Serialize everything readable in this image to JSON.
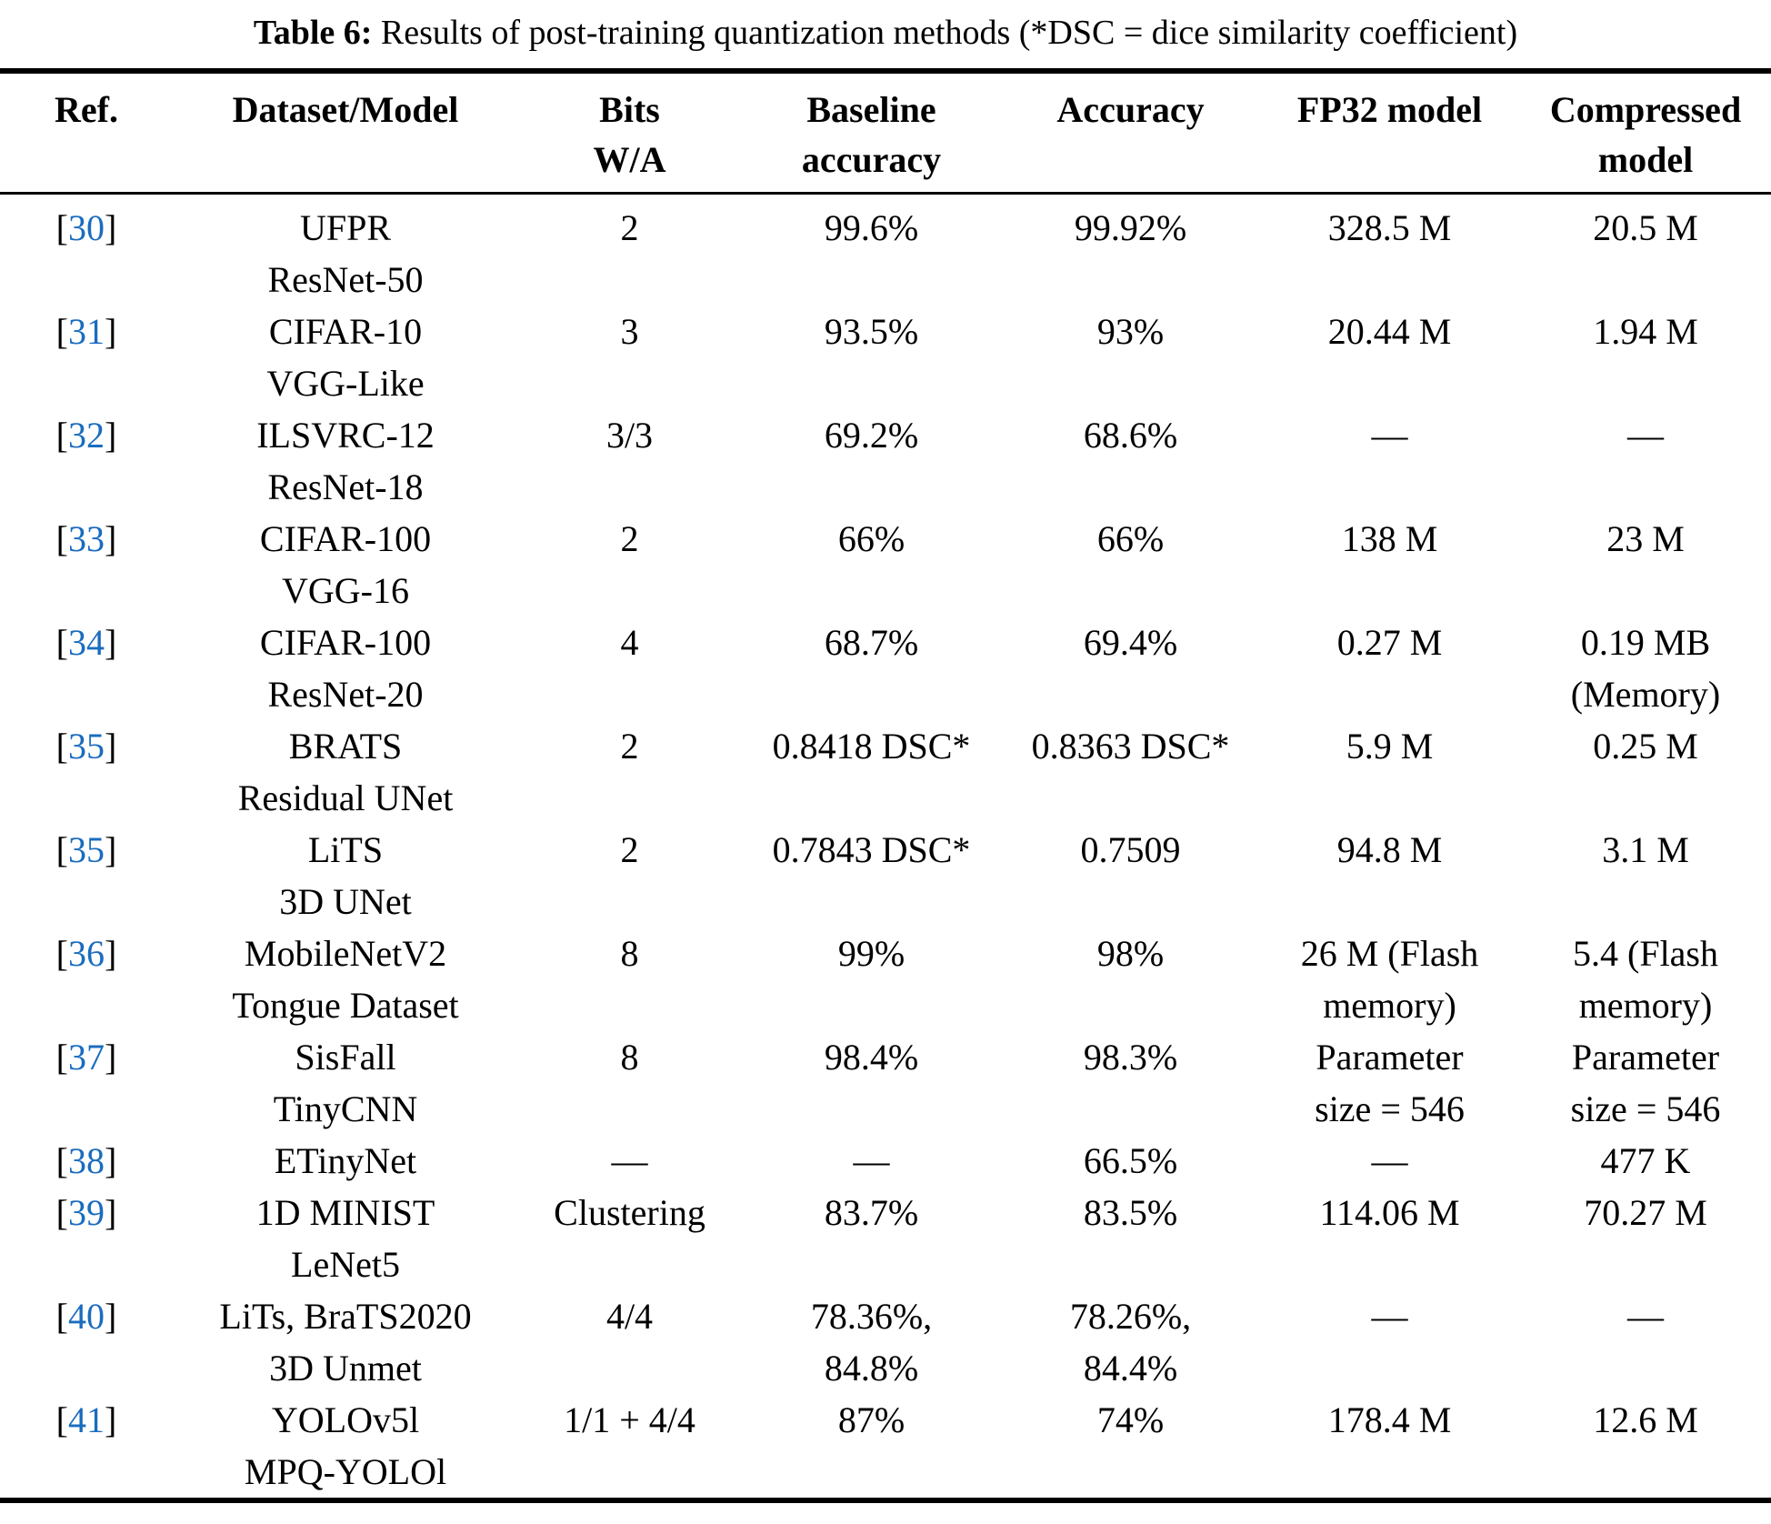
{
  "title": {
    "prefix": "Table 6:",
    "rest": " Results of post-training quantization methods (*DSC = dice similarity coefficient)"
  },
  "accent_color": "#1a6cbe",
  "table": {
    "headers": [
      {
        "lines": [
          "Ref."
        ]
      },
      {
        "lines": [
          "Dataset/Model"
        ]
      },
      {
        "lines": [
          "Bits",
          "W/A"
        ]
      },
      {
        "lines": [
          "Baseline",
          "accuracy"
        ]
      },
      {
        "lines": [
          "Accuracy"
        ]
      },
      {
        "lines": [
          "FP32 model"
        ]
      },
      {
        "lines": [
          "Compressed",
          "model"
        ]
      }
    ],
    "rows": [
      {
        "ref": {
          "open": "[",
          "num": "30",
          "close": "]"
        },
        "cells": [
          [
            "UFPR",
            "ResNet-50"
          ],
          [
            "2"
          ],
          [
            "99.6%"
          ],
          [
            "99.92%"
          ],
          [
            "328.5 M"
          ],
          [
            "20.5 M"
          ]
        ]
      },
      {
        "ref": {
          "open": "[",
          "num": "31",
          "close": "]"
        },
        "cells": [
          [
            "CIFAR-10",
            "VGG-Like"
          ],
          [
            "3"
          ],
          [
            "93.5%"
          ],
          [
            "93%"
          ],
          [
            "20.44 M"
          ],
          [
            "1.94 M"
          ]
        ]
      },
      {
        "ref": {
          "open": "[",
          "num": "32",
          "close": "]"
        },
        "cells": [
          [
            "ILSVRC-12",
            "ResNet-18"
          ],
          [
            "3/3"
          ],
          [
            "69.2%"
          ],
          [
            "68.6%"
          ],
          [
            "—"
          ],
          [
            "—"
          ]
        ]
      },
      {
        "ref": {
          "open": "[",
          "num": "33",
          "close": "]"
        },
        "cells": [
          [
            "CIFAR-100",
            "VGG-16"
          ],
          [
            "2"
          ],
          [
            "66%"
          ],
          [
            "66%"
          ],
          [
            "138 M"
          ],
          [
            "23 M"
          ]
        ]
      },
      {
        "ref": {
          "open": "[",
          "num": "34",
          "close": "]"
        },
        "cells": [
          [
            "CIFAR-100",
            "ResNet-20"
          ],
          [
            "4"
          ],
          [
            "68.7%"
          ],
          [
            "69.4%"
          ],
          [
            "0.27 M"
          ],
          [
            "0.19 MB",
            "(Memory)"
          ]
        ]
      },
      {
        "ref": {
          "open": "[",
          "num": "35",
          "close": "]"
        },
        "cells": [
          [
            "BRATS",
            "Residual UNet"
          ],
          [
            "2"
          ],
          [
            "0.8418 DSC*"
          ],
          [
            "0.8363 DSC*"
          ],
          [
            "5.9 M"
          ],
          [
            "0.25 M"
          ]
        ]
      },
      {
        "ref": {
          "open": "[",
          "num": "35",
          "close": "]"
        },
        "cells": [
          [
            "LiTS",
            "3D UNet"
          ],
          [
            "2"
          ],
          [
            "0.7843 DSC*"
          ],
          [
            "0.7509"
          ],
          [
            "94.8 M"
          ],
          [
            "3.1 M"
          ]
        ]
      },
      {
        "ref": {
          "open": "[",
          "num": "36",
          "close": "]"
        },
        "cells": [
          [
            "MobileNetV2",
            "Tongue Dataset"
          ],
          [
            "8"
          ],
          [
            "99%"
          ],
          [
            "98%"
          ],
          [
            "26 M (Flash",
            "memory)"
          ],
          [
            "5.4 (Flash",
            "memory)"
          ]
        ]
      },
      {
        "ref": {
          "open": "[",
          "num": "37",
          "close": "]"
        },
        "cells": [
          [
            "SisFall",
            "TinyCNN"
          ],
          [
            "8"
          ],
          [
            "98.4%"
          ],
          [
            "98.3%"
          ],
          [
            "Parameter",
            "size = 546"
          ],
          [
            "Parameter",
            "size = 546"
          ]
        ]
      },
      {
        "ref": {
          "open": "[",
          "num": "38",
          "close": "]"
        },
        "cells": [
          [
            "ETinyNet"
          ],
          [
            "—"
          ],
          [
            "—"
          ],
          [
            "66.5%"
          ],
          [
            "—"
          ],
          [
            "477 K"
          ]
        ]
      },
      {
        "ref": {
          "open": "[",
          "num": "39",
          "close": "]"
        },
        "cells": [
          [
            "1D MINIST",
            "LeNet5"
          ],
          [
            "Clustering"
          ],
          [
            "83.7%"
          ],
          [
            "83.5%"
          ],
          [
            "114.06 M"
          ],
          [
            "70.27 M"
          ]
        ]
      },
      {
        "ref": {
          "open": "[",
          "num": "40",
          "close": "]"
        },
        "cells": [
          [
            "LiTs, BraTS2020",
            "3D Unmet"
          ],
          [
            "4/4"
          ],
          [
            "78.36%,",
            "84.8%"
          ],
          [
            "78.26%,",
            "84.4%"
          ],
          [
            "—"
          ],
          [
            "—"
          ]
        ]
      },
      {
        "ref": {
          "open": "[",
          "num": "41",
          "close": "]"
        },
        "cells": [
          [
            "YOLOv5l",
            "MPQ-YOLOl"
          ],
          [
            "1/1 + 4/4"
          ],
          [
            "87%"
          ],
          [
            "74%"
          ],
          [
            "178.4 M"
          ],
          [
            "12.6 M"
          ]
        ]
      }
    ]
  }
}
